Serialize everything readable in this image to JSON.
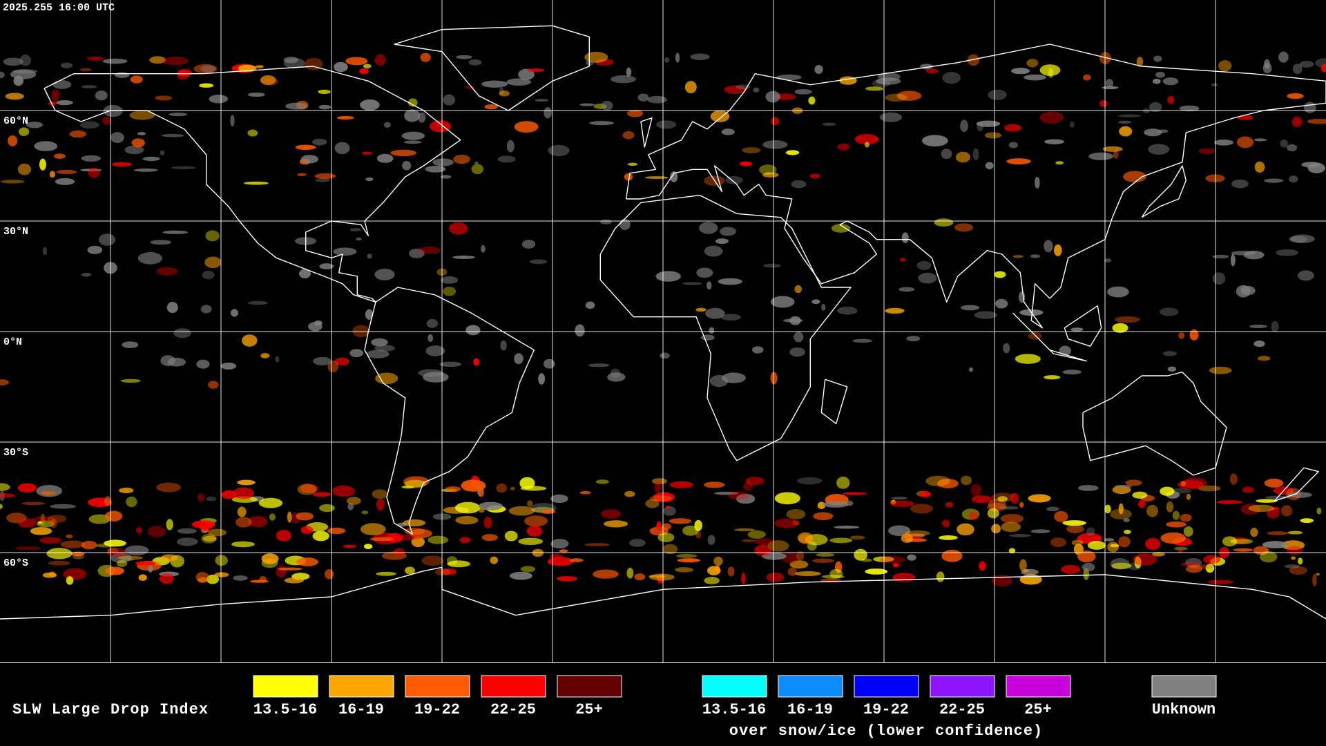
{
  "timestamp": "2025.255 16:00 UTC",
  "latitude_labels": [
    "60°N",
    "30°N",
    "0°N",
    "30°S",
    "60°S"
  ],
  "legend": {
    "title": "SLW Large Drop Index",
    "groups": [
      {
        "items": [
          {
            "label": "13.5-16",
            "color": "#ffff00"
          },
          {
            "label": "16-19",
            "color": "#ffa500"
          },
          {
            "label": "19-22",
            "color": "#ff5a00"
          },
          {
            "label": "22-25",
            "color": "#ff0000"
          },
          {
            "label": "25+",
            "color": "#640000"
          }
        ]
      },
      {
        "items": [
          {
            "label": "13.5-16",
            "color": "#00ffff"
          },
          {
            "label": "16-19",
            "color": "#0a8cff"
          },
          {
            "label": "19-22",
            "color": "#0000ff"
          },
          {
            "label": "22-25",
            "color": "#8c14ff"
          },
          {
            "label": "25+",
            "color": "#c800dc"
          }
        ]
      }
    ],
    "snow_ice_note": "over snow/ice (lower confidence)",
    "unknown": {
      "label": "Unknown",
      "color": "#808080"
    }
  }
}
